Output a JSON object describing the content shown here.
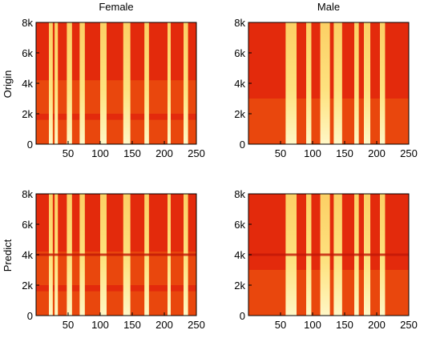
{
  "figure": {
    "column_titles": [
      "Female",
      "Male"
    ],
    "row_titles": [
      "Origin",
      "Predict"
    ]
  },
  "chart_data": [
    {
      "type": "heatmap",
      "title": "Female",
      "ylabel": "Origin",
      "xlim": [
        0,
        250
      ],
      "ylim": [
        0,
        8000
      ],
      "x_ticks": [
        50,
        100,
        150,
        200,
        250
      ],
      "y_ticks": [
        0,
        2000,
        4000,
        6000,
        8000
      ],
      "y_tick_labels": [
        "0",
        "2k",
        "4k",
        "6k",
        "8k"
      ],
      "colormap": [
        "#e32a0c",
        "#f06a10",
        "#fbb320",
        "#fff47a"
      ],
      "bright_frames": [
        [
          20,
          26
        ],
        [
          29,
          34
        ],
        [
          48,
          56
        ],
        [
          68,
          76
        ],
        [
          100,
          110
        ],
        [
          136,
          147
        ],
        [
          169,
          176
        ],
        [
          205,
          210
        ],
        [
          230,
          237
        ]
      ],
      "bright_band_ranges": [
        [
          0,
          1600
        ],
        [
          2000,
          4200
        ]
      ],
      "horizontal_band_hz": null
    },
    {
      "type": "heatmap",
      "title": "Male",
      "xlim": [
        0,
        250
      ],
      "ylim": [
        0,
        8000
      ],
      "x_ticks": [
        50,
        100,
        150,
        200,
        250
      ],
      "y_ticks": [
        0,
        2000,
        4000,
        6000,
        8000
      ],
      "y_tick_labels": [
        "0",
        "2k",
        "4k",
        "6k",
        "8k"
      ],
      "colormap": [
        "#e32a0c",
        "#f06a10",
        "#fbb320",
        "#fff47a"
      ],
      "bright_frames": [
        [
          58,
          75
        ],
        [
          90,
          98
        ],
        [
          112,
          127
        ],
        [
          133,
          146
        ],
        [
          165,
          172
        ],
        [
          180,
          190
        ],
        [
          205,
          213
        ]
      ],
      "bright_band_ranges": [
        [
          0,
          3000
        ]
      ],
      "horizontal_band_hz": null
    },
    {
      "type": "heatmap",
      "ylabel": "Predict",
      "xlim": [
        0,
        250
      ],
      "ylim": [
        0,
        8000
      ],
      "x_ticks": [
        50,
        100,
        150,
        200,
        250
      ],
      "y_ticks": [
        0,
        2000,
        4000,
        6000,
        8000
      ],
      "y_tick_labels": [
        "0",
        "2k",
        "4k",
        "6k",
        "8k"
      ],
      "colormap": [
        "#e32a0c",
        "#f06a10",
        "#fbb320",
        "#fff47a"
      ],
      "bright_frames": [
        [
          20,
          26
        ],
        [
          29,
          34
        ],
        [
          48,
          56
        ],
        [
          68,
          76
        ],
        [
          100,
          110
        ],
        [
          136,
          147
        ],
        [
          169,
          176
        ],
        [
          205,
          210
        ],
        [
          230,
          237
        ]
      ],
      "bright_band_ranges": [
        [
          0,
          1600
        ],
        [
          2000,
          4200
        ]
      ],
      "horizontal_band_hz": 4000
    },
    {
      "type": "heatmap",
      "xlim": [
        0,
        250
      ],
      "ylim": [
        0,
        8000
      ],
      "x_ticks": [
        50,
        100,
        150,
        200,
        250
      ],
      "y_ticks": [
        0,
        2000,
        4000,
        6000,
        8000
      ],
      "y_tick_labels": [
        "0",
        "2k",
        "4k",
        "6k",
        "8k"
      ],
      "colormap": [
        "#e32a0c",
        "#f06a10",
        "#fbb320",
        "#fff47a"
      ],
      "bright_frames": [
        [
          58,
          75
        ],
        [
          90,
          98
        ],
        [
          112,
          127
        ],
        [
          133,
          146
        ],
        [
          165,
          172
        ],
        [
          180,
          190
        ],
        [
          205,
          213
        ]
      ],
      "bright_band_ranges": [
        [
          0,
          3000
        ]
      ],
      "horizontal_band_hz": 4000
    }
  ]
}
